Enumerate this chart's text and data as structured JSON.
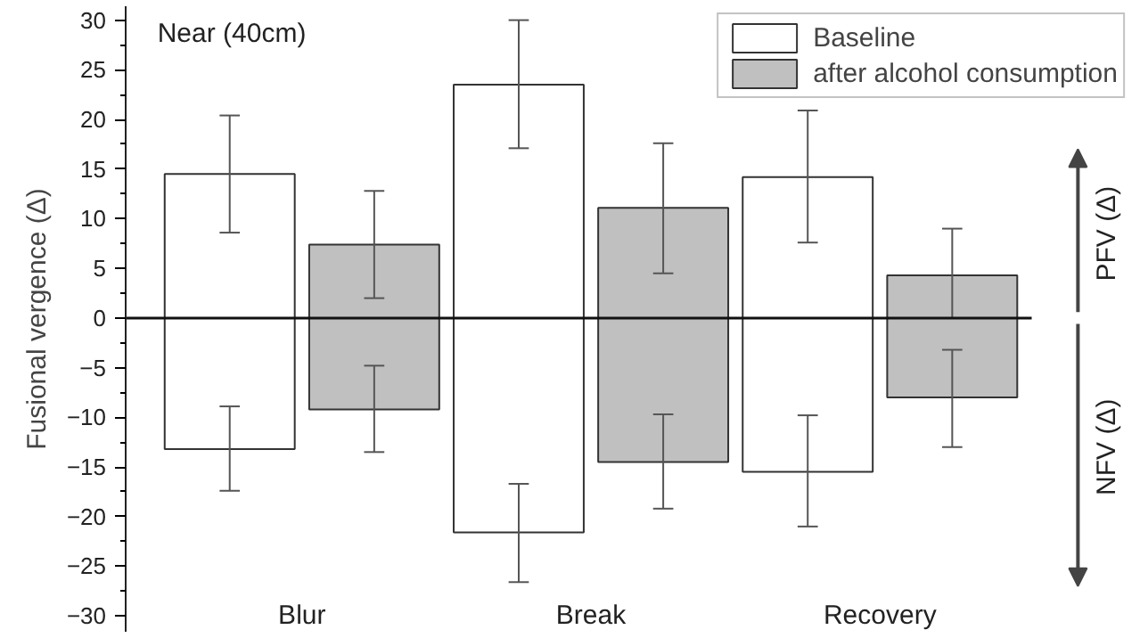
{
  "chart_data": {
    "type": "bar",
    "ylabel": "Fusional vergence (Δ)",
    "categories": [
      "Blur",
      null,
      "Break",
      null,
      "Recovery",
      null
    ],
    "stacked": true,
    "series": [
      {
        "name": "Baseline",
        "color": "#ffffff",
        "values": [
          14.5,
          null,
          23.5,
          null,
          14.2,
          null
        ],
        "errors": [
          [
            8.6,
            20.4
          ],
          null,
          [
            17.1,
            30.0
          ],
          null,
          [
            7.6,
            20.9
          ],
          null
        ]
      },
      {
        "color": "#ffffff",
        "values": [
          -13.2,
          null,
          -21.6,
          null,
          -15.5,
          null
        ],
        "errors": [
          [
            -17.4,
            -8.9
          ],
          null,
          [
            -26.6,
            -16.7
          ],
          null,
          [
            -21.0,
            -9.8
          ],
          null
        ]
      },
      {
        "name": "after alcohol consumption",
        "color": "#c0c0c0",
        "values": [
          null,
          7.4,
          null,
          11.1,
          null,
          4.3
        ],
        "errors": [
          null,
          [
            2.0,
            12.8
          ],
          null,
          [
            4.5,
            17.6
          ],
          null,
          [
            -0.4,
            9.0
          ]
        ]
      },
      {
        "color": "#c0c0c0",
        "values": [
          null,
          -9.2,
          null,
          -14.5,
          null,
          -8.0
        ],
        "errors": [
          null,
          [
            -13.5,
            -4.8
          ],
          null,
          [
            -19.2,
            -9.7
          ],
          null,
          [
            -13.0,
            -3.2
          ]
        ]
      }
    ],
    "ylim": [
      -31.6,
      31.4
    ],
    "yticks": [
      -30,
      -25,
      -20,
      -15,
      -10,
      -5,
      0,
      5,
      10,
      15,
      20,
      25,
      30
    ],
    "ref_lines": [
      {
        "axis": "y",
        "value": 0,
        "color": "#111111"
      }
    ],
    "annotations": [
      "Near (40cm)",
      "PFV (Δ)",
      "NFV (Δ)"
    ],
    "legend": "top right"
  }
}
